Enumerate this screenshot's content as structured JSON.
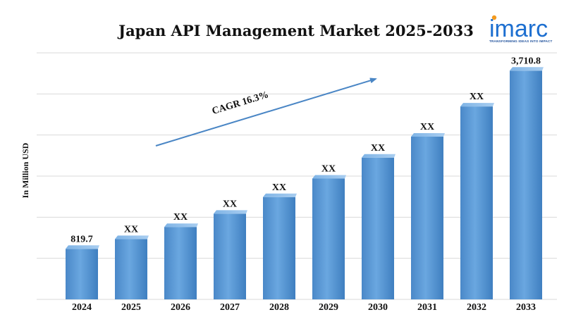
{
  "chart_data": {
    "type": "bar",
    "title": "Japan API Management Market 2025-2033",
    "ylabel": "In Million USD",
    "xlabel": "",
    "categories": [
      "2024",
      "2025",
      "2026",
      "2027",
      "2028",
      "2029",
      "2030",
      "2031",
      "2032",
      "2033"
    ],
    "values": [
      819.7,
      979,
      1175,
      1390,
      1660,
      1960,
      2300,
      2640,
      3130,
      3710.8
    ],
    "data_labels": [
      "819.7",
      "XX",
      "XX",
      "XX",
      "XX",
      "XX",
      "XX",
      "XX",
      "XX",
      "3,710.8"
    ],
    "ylim": [
      0,
      4000
    ],
    "grid": true,
    "bar_color": "#5b9bd5",
    "annotation": "CAGR 16.3%"
  },
  "logo": {
    "text": "imarc",
    "tagline": "TRANSFORMING IDEAS INTO IMPACT",
    "color": "#1d6fd0"
  }
}
